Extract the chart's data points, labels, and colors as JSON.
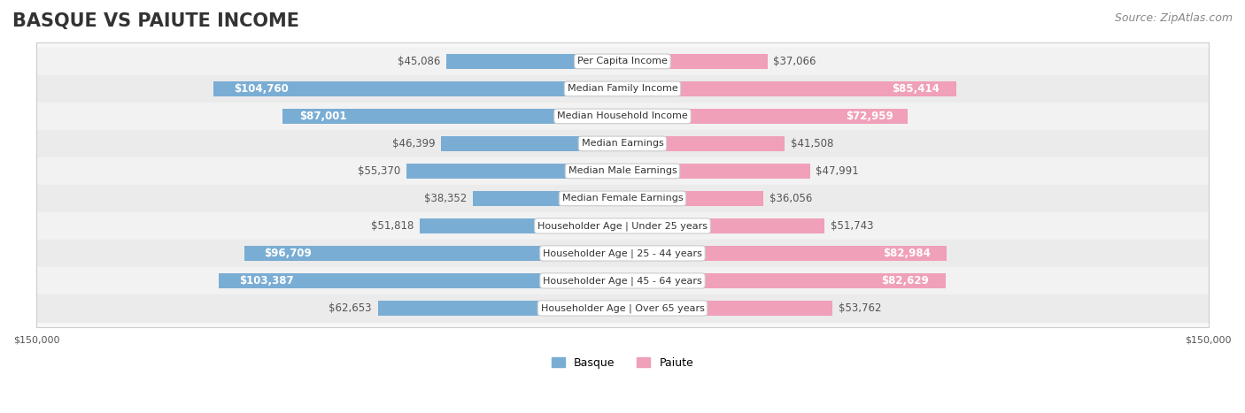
{
  "title": "BASQUE VS PAIUTE INCOME",
  "source": "Source: ZipAtlas.com",
  "categories": [
    "Per Capita Income",
    "Median Family Income",
    "Median Household Income",
    "Median Earnings",
    "Median Male Earnings",
    "Median Female Earnings",
    "Householder Age | Under 25 years",
    "Householder Age | 25 - 44 years",
    "Householder Age | 45 - 64 years",
    "Householder Age | Over 65 years"
  ],
  "basque_values": [
    45086,
    104760,
    87001,
    46399,
    55370,
    38352,
    51818,
    96709,
    103387,
    62653
  ],
  "paiute_values": [
    37066,
    85414,
    72959,
    41508,
    47991,
    36056,
    51743,
    82984,
    82629,
    53762
  ],
  "basque_color_fill": "#7aadd4",
  "basque_color_dark": "#5b9cc9",
  "paiute_color_fill": "#f0a0b8",
  "paiute_color_dark": "#e87098",
  "label_color_dark_bg": "#ffffff",
  "label_color_light_bg": "#888888",
  "max_value": 150000,
  "background_color": "#f5f5f5",
  "row_bg_color": "#f0f0f0",
  "row_alt_bg_color": "#e8e8e8",
  "title_fontsize": 15,
  "source_fontsize": 9,
  "label_fontsize": 8.5,
  "category_fontsize": 8,
  "axis_label_fontsize": 8,
  "legend_fontsize": 9
}
